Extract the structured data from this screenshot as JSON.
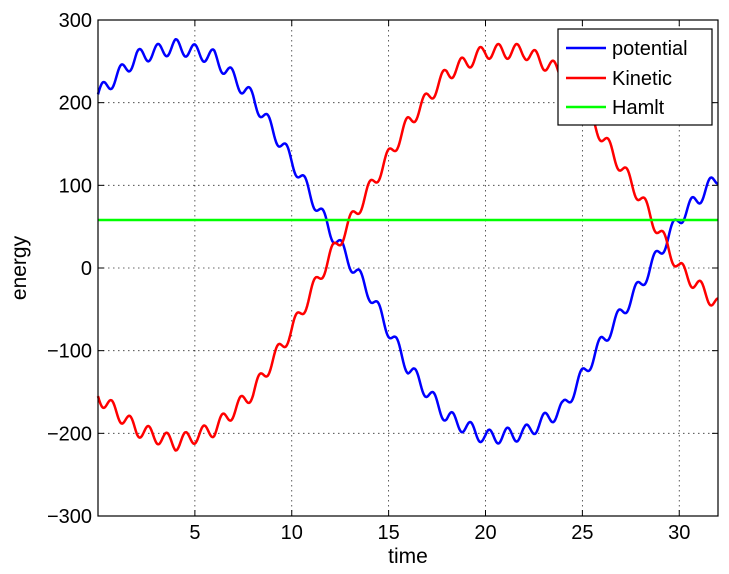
{
  "chart_data": {
    "type": "line",
    "title": "",
    "xlabel": "time",
    "ylabel": "energy",
    "xlim": [
      0,
      32
    ],
    "ylim": [
      -300,
      300
    ],
    "xticks": [
      5,
      10,
      15,
      20,
      25,
      30
    ],
    "yticks": [
      -300,
      -200,
      -100,
      0,
      100,
      200,
      300
    ],
    "grid": true,
    "legend_position": "top-right",
    "series": [
      {
        "name": "potential",
        "color": "#0000ff",
        "x": [
          0,
          2,
          4,
          6,
          8,
          10,
          12,
          14,
          16,
          18,
          20,
          22,
          24,
          26,
          28,
          30,
          32
        ],
        "y": [
          210,
          255,
          268,
          255,
          205,
          130,
          45,
          -30,
          -120,
          -180,
          -205,
          -200,
          -170,
          -90,
          -20,
          60,
          110
        ]
      },
      {
        "name": "Kinetic",
        "color": "#ff0000",
        "x": [
          0,
          2,
          4,
          6,
          8,
          10,
          12,
          14,
          16,
          18,
          20,
          22,
          24,
          26,
          28,
          30,
          32
        ],
        "y": [
          -155,
          -195,
          -212,
          -195,
          -150,
          -75,
          15,
          95,
          175,
          235,
          262,
          262,
          235,
          160,
          85,
          0,
          -45
        ]
      },
      {
        "name": "Hamlt",
        "color": "#00ff00",
        "x": [
          0,
          32
        ],
        "y": [
          58,
          58
        ]
      }
    ]
  }
}
